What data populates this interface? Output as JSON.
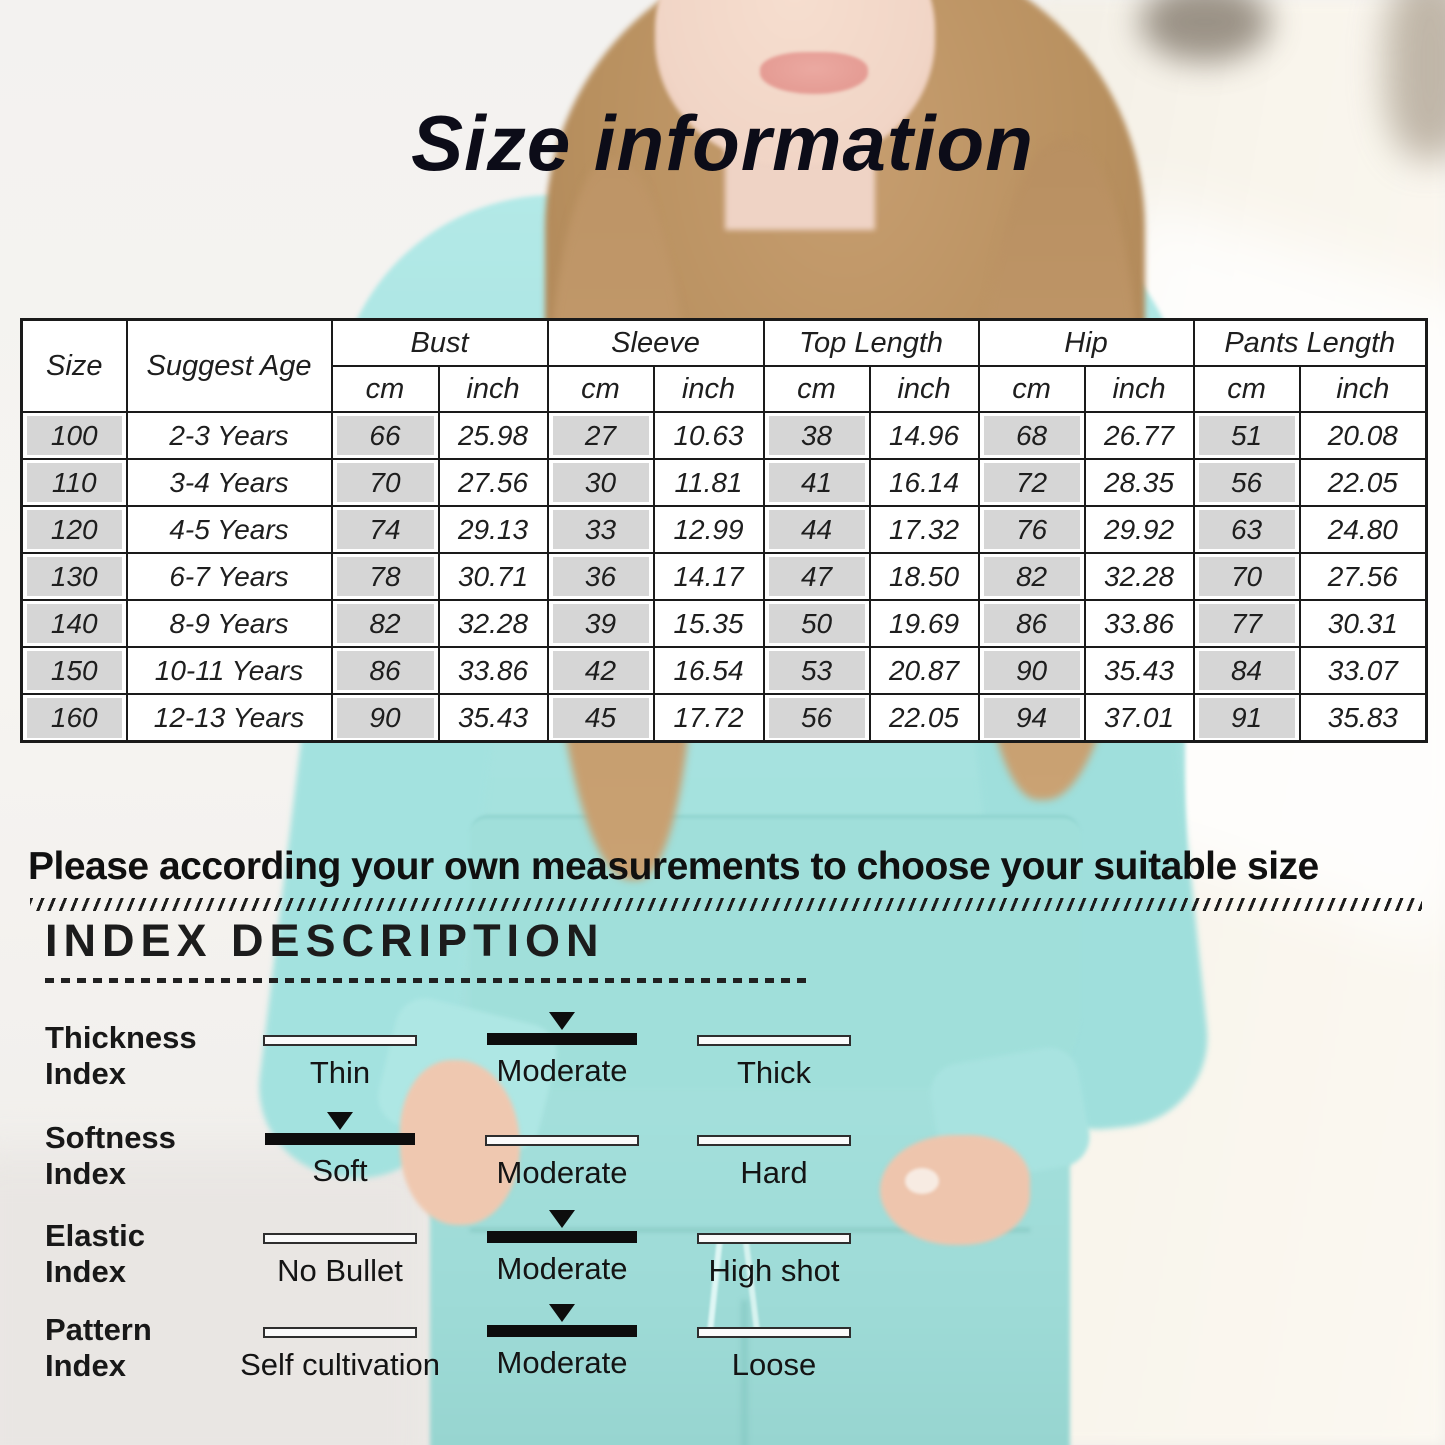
{
  "title": "Size information",
  "note": "Please according your own measurements to choose your suitable size",
  "size_table": {
    "headers": {
      "size": "Size",
      "suggest_age": "Suggest Age",
      "groups": [
        "Bust",
        "Sleeve",
        "Top Length",
        "Hip",
        "Pants Length"
      ],
      "sub_units": [
        "cm",
        "inch"
      ]
    },
    "rows": [
      [
        "100",
        "2-3 Years",
        "66",
        "25.98",
        "27",
        "10.63",
        "38",
        "14.96",
        "68",
        "26.77",
        "51",
        "20.08"
      ],
      [
        "110",
        "3-4 Years",
        "70",
        "27.56",
        "30",
        "11.81",
        "41",
        "16.14",
        "72",
        "28.35",
        "56",
        "22.05"
      ],
      [
        "120",
        "4-5 Years",
        "74",
        "29.13",
        "33",
        "12.99",
        "44",
        "17.32",
        "76",
        "29.92",
        "63",
        "24.80"
      ],
      [
        "130",
        "6-7 Years",
        "78",
        "30.71",
        "36",
        "14.17",
        "47",
        "18.50",
        "82",
        "32.28",
        "70",
        "27.56"
      ],
      [
        "140",
        "8-9 Years",
        "82",
        "32.28",
        "39",
        "15.35",
        "50",
        "19.69",
        "86",
        "33.86",
        "77",
        "30.31"
      ],
      [
        "150",
        "10-11 Years",
        "86",
        "33.86",
        "42",
        "16.54",
        "53",
        "20.87",
        "90",
        "35.43",
        "84",
        "33.07"
      ],
      [
        "160",
        "12-13 Years",
        "90",
        "35.43",
        "45",
        "17.72",
        "56",
        "22.05",
        "94",
        "37.01",
        "91",
        "35.83"
      ]
    ]
  },
  "index_section": {
    "heading": "INDEX DESCRIPTION",
    "rows": [
      {
        "label_lines": [
          "Thickness",
          "Index"
        ],
        "options": [
          "Thin",
          "Moderate",
          "Thick"
        ],
        "selected_index": 1
      },
      {
        "label_lines": [
          "Softness",
          "Index"
        ],
        "options": [
          "Soft",
          "Moderate",
          "Hard"
        ],
        "selected_index": 0
      },
      {
        "label_lines": [
          "Elastic",
          "Index"
        ],
        "options": [
          "No Bullet",
          "Moderate",
          "High shot"
        ],
        "selected_index": 1
      },
      {
        "label_lines": [
          "Pattern",
          "Index"
        ],
        "options": [
          "Self cultivation",
          "Moderate",
          "Loose"
        ],
        "selected_index": 1
      }
    ]
  },
  "colors": {
    "table_shade": "#d6d6d6",
    "table_border": "#1a1a1a",
    "garment_teal": "#a8e4e1",
    "pants_teal": "#9edbd7",
    "text_dark": "#111111"
  }
}
